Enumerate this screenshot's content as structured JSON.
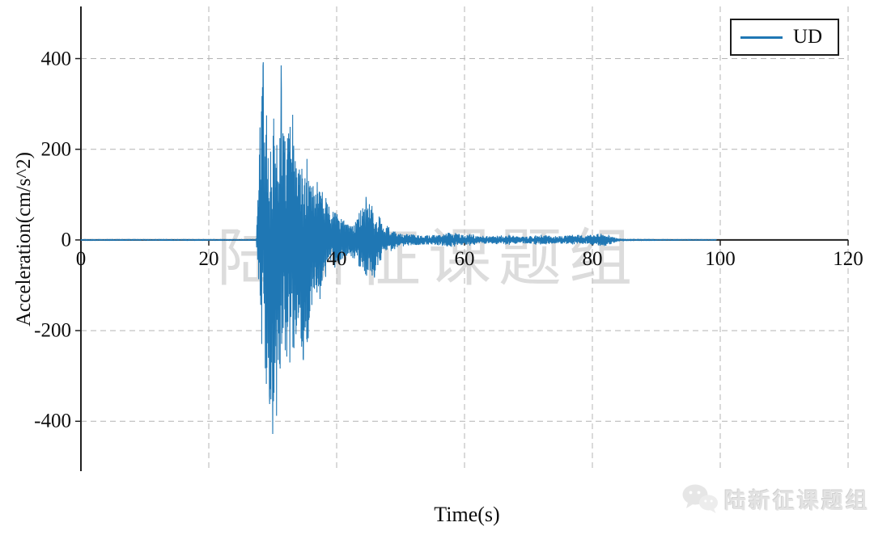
{
  "chart_data": {
    "type": "line",
    "title": "",
    "xlabel": "Time(s)",
    "ylabel": "Acceleration(cm/s^2)",
    "xlim": [
      0,
      120
    ],
    "ylim": [
      -510,
      515
    ],
    "x_ticks": [
      0,
      20,
      40,
      60,
      80,
      100,
      120
    ],
    "y_ticks": [
      400,
      200,
      0,
      -200,
      -400
    ],
    "grid": "dashed",
    "legend": {
      "position": "top-right",
      "entries": [
        {
          "label": "UD",
          "color": "#1f77b4"
        }
      ]
    },
    "series": [
      {
        "name": "UD",
        "color": "#1f77b4",
        "signal_end_s": 99.4,
        "peak_positive": {
          "t": 28.5,
          "value": 392
        },
        "peak_negative": {
          "t": 30.0,
          "value": -428
        },
        "secondary_peaks": [
          {
            "t": 31.3,
            "value": 385
          },
          {
            "t": 29.5,
            "value": -362
          },
          {
            "t": 30.6,
            "value": -388
          },
          {
            "t": 34.8,
            "value": -265
          },
          {
            "t": 44.6,
            "value": 95
          },
          {
            "t": 45.9,
            "value": -83
          }
        ],
        "envelope": {
          "t": [
            0,
            27.4,
            27.6,
            28.0,
            28.5,
            29.0,
            29.5,
            30.0,
            30.5,
            31.0,
            31.3,
            31.8,
            32.3,
            33.0,
            33.5,
            34.0,
            34.8,
            35.5,
            36.1,
            36.6,
            37.3,
            38.0,
            38.6,
            39.3,
            40.0,
            41.0,
            42.0,
            43.0,
            43.9,
            44.6,
            45.2,
            45.8,
            46.5,
            47.5,
            48.5,
            50.0,
            52.0,
            54.0,
            56.0,
            57.5,
            58.8,
            60.0,
            61.0,
            62.0,
            64.0,
            65.5,
            67.0,
            68.5,
            70.0,
            71.5,
            73.0,
            74.5,
            76.0,
            77.5,
            79.0,
            80.5,
            81.8,
            82.8,
            84.0,
            90.0,
            99.4
          ],
          "pos": [
            2,
            2,
            60,
            250,
            392,
            280,
            340,
            300,
            250,
            340,
            385,
            270,
            240,
            290,
            245,
            180,
            150,
            200,
            120,
            160,
            120,
            110,
            90,
            70,
            60,
            45,
            35,
            40,
            80,
            95,
            85,
            90,
            60,
            35,
            25,
            15,
            12,
            10,
            12,
            18,
            15,
            12,
            14,
            10,
            8,
            10,
            12,
            8,
            8,
            12,
            10,
            8,
            10,
            12,
            10,
            14,
            15,
            10,
            3,
            2,
            1.5
          ],
          "neg": [
            2,
            2,
            40,
            200,
            280,
            320,
            360,
            428,
            300,
            350,
            280,
            300,
            260,
            280,
            240,
            200,
            265,
            230,
            160,
            130,
            140,
            110,
            80,
            70,
            60,
            40,
            35,
            45,
            70,
            80,
            75,
            83,
            55,
            35,
            25,
            15,
            12,
            10,
            12,
            16,
            14,
            12,
            13,
            10,
            8,
            10,
            11,
            8,
            8,
            11,
            10,
            8,
            9,
            11,
            10,
            13,
            14,
            10,
            3,
            2,
            1.5
          ]
        }
      }
    ]
  },
  "watermark": {
    "center_text": "陆新征课题组",
    "logo_text": "陆新征课题组"
  }
}
